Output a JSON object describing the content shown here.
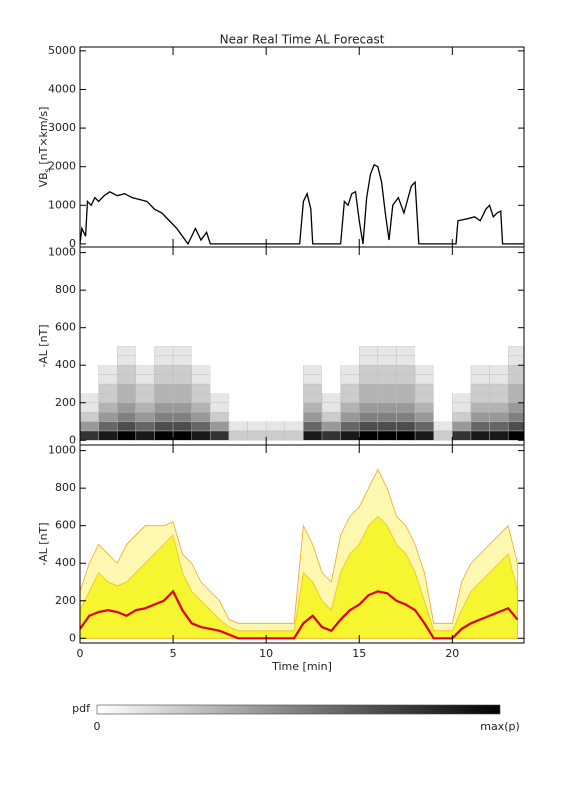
{
  "title": "Near Real Time AL Forecast",
  "chart_data": [
    {
      "type": "line",
      "ylabel": {
        "main": "VB",
        "sub": "s",
        "unit": " [nT×km/s]"
      },
      "xlim": [
        0,
        23.85
      ],
      "xticks": [
        0,
        5,
        10,
        15,
        20
      ],
      "xticklabels": false,
      "ylim": [
        -80,
        5100
      ],
      "yticks": [
        0,
        1000,
        2000,
        3000,
        4000,
        5000
      ],
      "color": "#000000",
      "x": [
        0,
        0.1,
        0.3,
        0.4,
        0.6,
        0.8,
        1.0,
        1.3,
        1.6,
        2.0,
        2.4,
        2.8,
        3.2,
        3.6,
        4.0,
        4.4,
        4.8,
        5.2,
        5.5,
        5.8,
        6.2,
        6.5,
        6.8,
        7.0,
        11.8,
        12.0,
        12.2,
        12.4,
        12.5,
        14.0,
        14.2,
        14.4,
        14.6,
        14.8,
        15.0,
        15.2,
        15.4,
        15.6,
        15.8,
        16.0,
        16.2,
        16.4,
        16.6,
        16.8,
        17.1,
        17.4,
        17.8,
        18.0,
        18.2,
        19.5,
        20.2,
        20.3,
        20.8,
        21.2,
        21.5,
        21.8,
        22.0,
        22.2,
        22.4,
        22.6,
        22.7,
        23.8
      ],
      "values": [
        0,
        400,
        200,
        1100,
        1000,
        1200,
        1100,
        1250,
        1350,
        1250,
        1300,
        1200,
        1150,
        1100,
        900,
        800,
        600,
        400,
        200,
        0,
        400,
        100,
        300,
        0,
        0,
        1100,
        1300,
        900,
        0,
        0,
        1100,
        1000,
        1300,
        1350,
        600,
        0,
        1200,
        1800,
        2050,
        2000,
        1600,
        800,
        100,
        1000,
        1200,
        800,
        1500,
        1600,
        0,
        0,
        0,
        600,
        650,
        700,
        600,
        900,
        1000,
        700,
        800,
        850,
        0,
        0
      ]
    },
    {
      "type": "heatmap",
      "ylabel": "-AL [nT]",
      "xlim": [
        0,
        23.85
      ],
      "xticks": [
        0,
        5,
        10,
        15,
        20
      ],
      "xticklabels": false,
      "ylim": [
        -25,
        1030
      ],
      "yticks": [
        0,
        200,
        400,
        600,
        800,
        1000
      ],
      "xbins": [
        0,
        1,
        2,
        3,
        4,
        5,
        6,
        7,
        8,
        9,
        10,
        11,
        12,
        13,
        14,
        15,
        16,
        17,
        18,
        19,
        20,
        21,
        22,
        23,
        24
      ],
      "ybins": [
        0,
        50,
        100,
        150,
        200,
        250,
        300,
        350,
        400,
        450,
        500
      ],
      "values": [
        [
          0.8,
          0.4,
          0.2,
          0.1,
          0.1,
          0,
          0,
          0,
          0,
          0
        ],
        [
          0.9,
          0.6,
          0.4,
          0.3,
          0.2,
          0.2,
          0.1,
          0.1,
          0,
          0
        ],
        [
          1,
          0.7,
          0.5,
          0.4,
          0.3,
          0.3,
          0.2,
          0.2,
          0.1,
          0.1
        ],
        [
          0.9,
          0.6,
          0.4,
          0.3,
          0.2,
          0.2,
          0.1,
          0.1,
          0,
          0
        ],
        [
          1,
          0.7,
          0.5,
          0.4,
          0.3,
          0.3,
          0.2,
          0.2,
          0.1,
          0.1
        ],
        [
          1,
          0.7,
          0.5,
          0.4,
          0.3,
          0.3,
          0.2,
          0.2,
          0.1,
          0.1
        ],
        [
          0.9,
          0.6,
          0.4,
          0.3,
          0.2,
          0.2,
          0.1,
          0.1,
          0,
          0
        ],
        [
          0.8,
          0.4,
          0.2,
          0.1,
          0.1,
          0,
          0,
          0,
          0,
          0
        ],
        [
          0.2,
          0.1,
          0,
          0,
          0,
          0,
          0,
          0,
          0,
          0
        ],
        [
          0.2,
          0.1,
          0,
          0,
          0,
          0,
          0,
          0,
          0,
          0
        ],
        [
          0.2,
          0.1,
          0,
          0,
          0,
          0,
          0,
          0,
          0,
          0
        ],
        [
          0.2,
          0.1,
          0,
          0,
          0,
          0,
          0,
          0,
          0,
          0
        ],
        [
          0.9,
          0.6,
          0.4,
          0.3,
          0.2,
          0.2,
          0.1,
          0.1,
          0,
          0
        ],
        [
          0.8,
          0.4,
          0.2,
          0.1,
          0.1,
          0,
          0,
          0,
          0,
          0
        ],
        [
          0.9,
          0.6,
          0.4,
          0.3,
          0.2,
          0.2,
          0.1,
          0.1,
          0,
          0
        ],
        [
          1,
          0.7,
          0.5,
          0.4,
          0.3,
          0.3,
          0.2,
          0.2,
          0.1,
          0.1
        ],
        [
          1,
          0.7,
          0.5,
          0.4,
          0.3,
          0.3,
          0.2,
          0.2,
          0.1,
          0.1
        ],
        [
          1,
          0.7,
          0.5,
          0.4,
          0.3,
          0.3,
          0.2,
          0.2,
          0.1,
          0.1
        ],
        [
          0.9,
          0.6,
          0.4,
          0.3,
          0.2,
          0.2,
          0.1,
          0.1,
          0,
          0
        ],
        [
          0.2,
          0.1,
          0,
          0,
          0,
          0,
          0,
          0,
          0,
          0
        ],
        [
          0.8,
          0.4,
          0.2,
          0.1,
          0.1,
          0,
          0,
          0,
          0,
          0
        ],
        [
          0.9,
          0.6,
          0.4,
          0.3,
          0.2,
          0.2,
          0.1,
          0.1,
          0,
          0
        ],
        [
          0.9,
          0.6,
          0.4,
          0.3,
          0.2,
          0.2,
          0.1,
          0.1,
          0,
          0
        ],
        [
          1,
          0.7,
          0.5,
          0.4,
          0.3,
          0.3,
          0.2,
          0.2,
          0.1,
          0.1
        ]
      ]
    },
    {
      "type": "area",
      "ylabel": "-AL [nT]",
      "xlabel": "Time [min]",
      "xlim": [
        0,
        23.85
      ],
      "xticks": [
        0,
        5,
        10,
        15,
        20
      ],
      "xticklabels": true,
      "ylim": [
        -25,
        1030
      ],
      "yticks": [
        0,
        200,
        400,
        600,
        800,
        1000
      ],
      "x": [
        0,
        0.5,
        1,
        1.5,
        2,
        2.5,
        3,
        3.5,
        4,
        4.5,
        5,
        5.5,
        6,
        6.5,
        7,
        7.5,
        8,
        8.5,
        9,
        9.5,
        10,
        10.5,
        11,
        11.5,
        12,
        12.5,
        13,
        13.5,
        14,
        14.5,
        15,
        15.5,
        16,
        16.5,
        17,
        17.5,
        18,
        18.5,
        19,
        19.5,
        20,
        20.5,
        21,
        21.5,
        22,
        22.5,
        23,
        23.5
      ],
      "series": [
        {
          "color": "#fff8b0",
          "stroke": "#f5a623",
          "fill": true,
          "values": [
            250,
            400,
            500,
            450,
            400,
            500,
            550,
            600,
            600,
            600,
            620,
            450,
            400,
            300,
            250,
            200,
            100,
            80,
            80,
            80,
            80,
            80,
            80,
            80,
            600,
            500,
            350,
            300,
            550,
            650,
            700,
            800,
            900,
            800,
            650,
            600,
            500,
            350,
            80,
            80,
            80,
            300,
            400,
            450,
            500,
            550,
            600,
            400
          ]
        },
        {
          "color": "#f5f530",
          "stroke": "#f0c020",
          "fill": true,
          "values": [
            150,
            250,
            350,
            300,
            280,
            300,
            350,
            400,
            450,
            500,
            550,
            350,
            250,
            200,
            150,
            100,
            60,
            40,
            40,
            40,
            40,
            40,
            40,
            40,
            350,
            300,
            200,
            150,
            350,
            450,
            500,
            600,
            650,
            600,
            500,
            450,
            350,
            200,
            40,
            40,
            40,
            150,
            250,
            300,
            350,
            400,
            450,
            250
          ]
        },
        {
          "color": "#e00000",
          "stroke": "#e00000",
          "fill": false,
          "values": [
            50,
            120,
            140,
            150,
            140,
            120,
            150,
            160,
            180,
            200,
            250,
            150,
            80,
            60,
            50,
            40,
            20,
            0,
            0,
            0,
            0,
            0,
            0,
            0,
            80,
            120,
            60,
            40,
            100,
            150,
            180,
            230,
            250,
            240,
            200,
            180,
            150,
            80,
            0,
            0,
            0,
            50,
            80,
            100,
            120,
            140,
            160,
            100
          ]
        }
      ]
    }
  ],
  "colorbar": {
    "label": "pdf",
    "min_label": "0",
    "max_label": "max(p)"
  }
}
